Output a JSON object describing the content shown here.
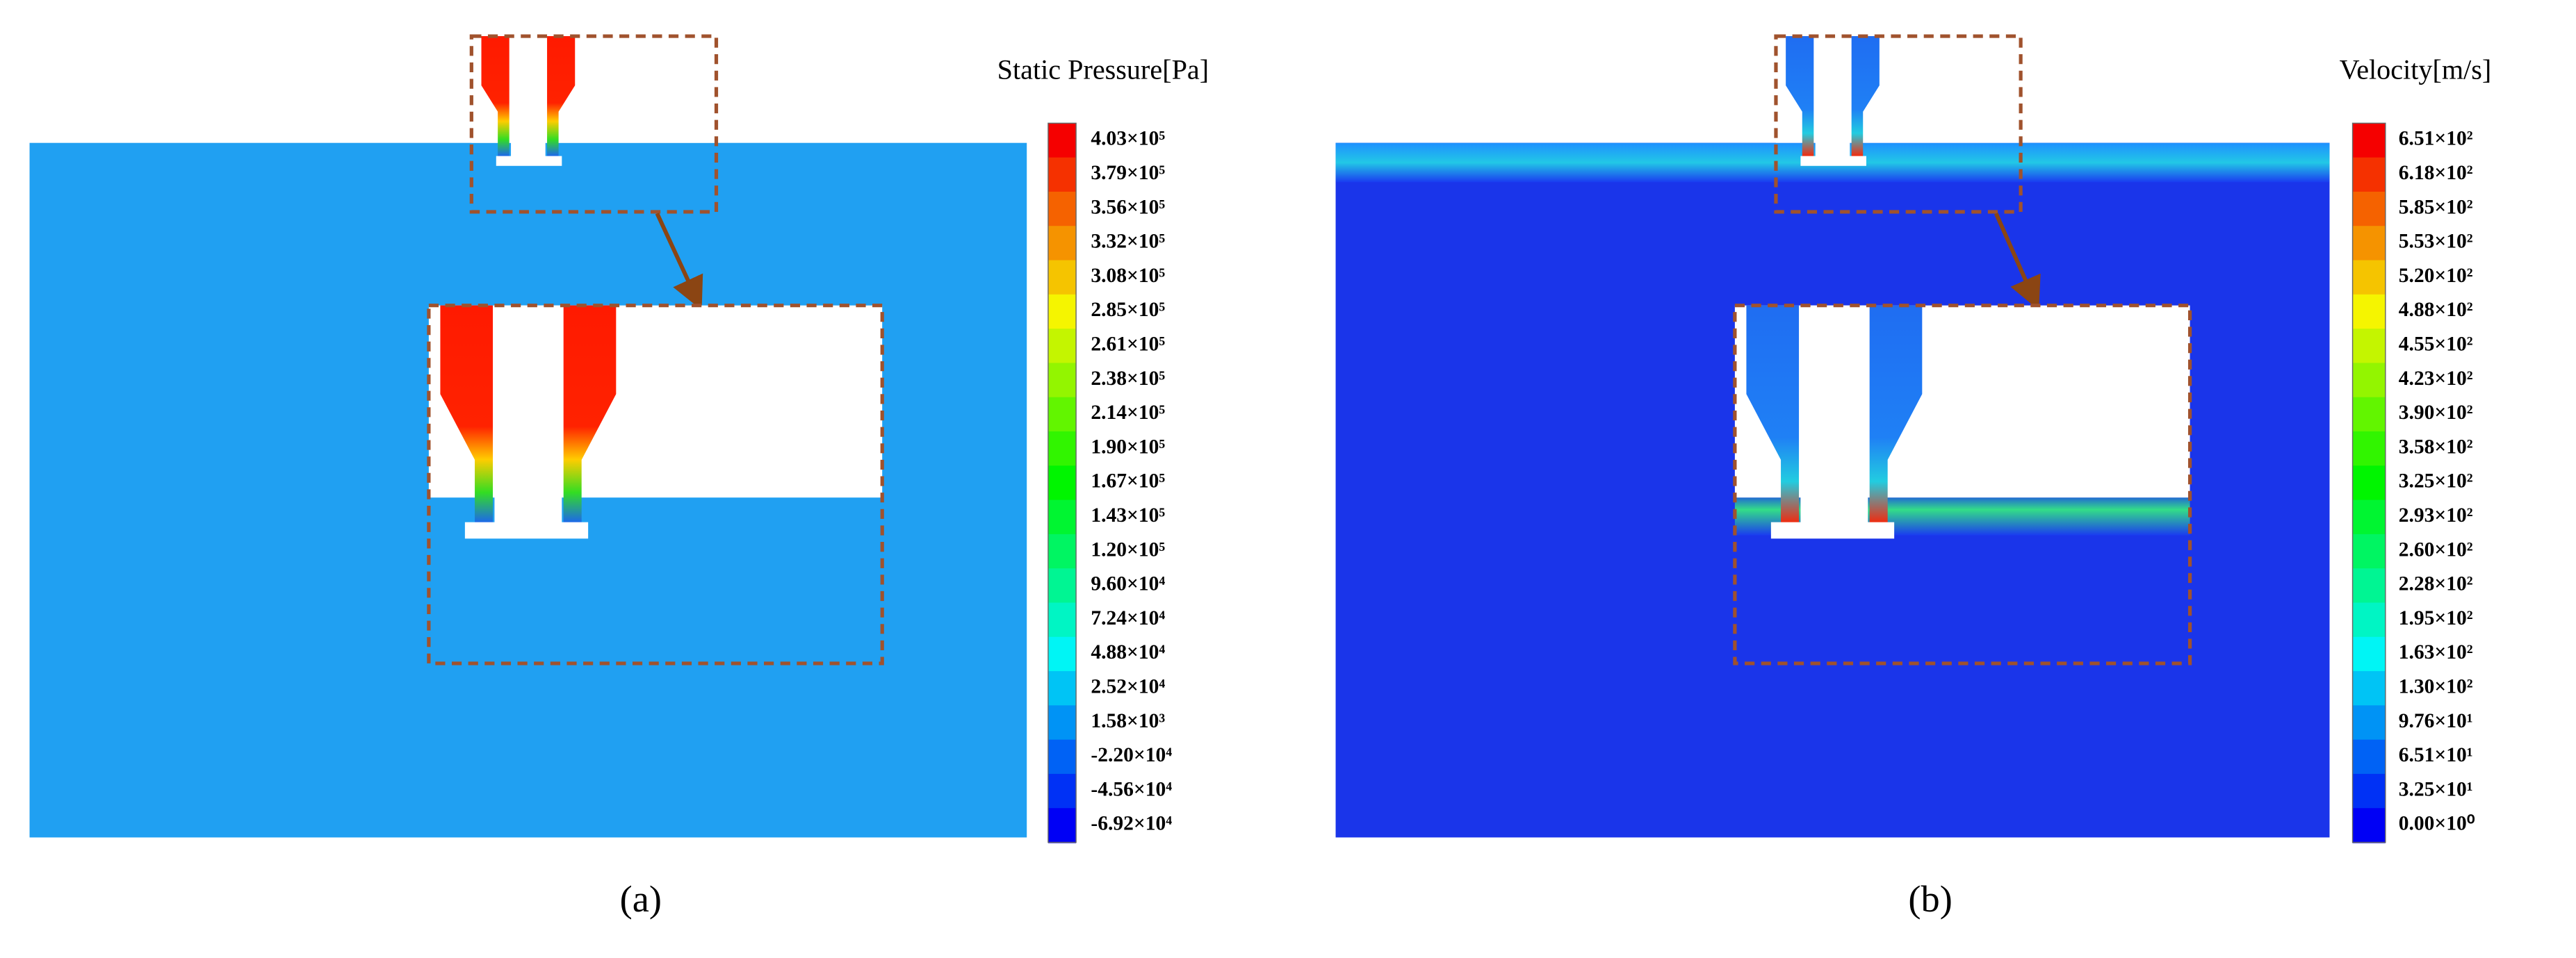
{
  "panels": [
    {
      "title": "Static Pressure[Pa]",
      "caption": "(a)",
      "legend_labels": [
        "4.03×10⁵",
        "3.79×10⁵",
        "3.56×10⁵",
        "3.32×10⁵",
        "3.08×10⁵",
        "2.85×10⁵",
        "2.61×10⁵",
        "2.38×10⁵",
        "2.14×10⁵",
        "1.90×10⁵",
        "1.67×10⁵",
        "1.43×10⁵",
        "1.20×10⁵",
        "9.60×10⁴",
        "7.24×10⁴",
        "4.88×10⁴",
        "2.52×10⁴",
        "1.58×10³",
        "-2.20×10⁴",
        "-4.56×10⁴",
        "-6.92×10⁴"
      ]
    },
    {
      "title": "Velocity[m/s]",
      "caption": "(b)",
      "legend_labels": [
        "6.51×10²",
        "6.18×10²",
        "5.85×10²",
        "5.53×10²",
        "5.20×10²",
        "4.88×10²",
        "4.55×10²",
        "4.23×10²",
        "3.90×10²",
        "3.58×10²",
        "3.25×10²",
        "2.93×10²",
        "2.60×10²",
        "2.28×10²",
        "1.95×10²",
        "1.63×10²",
        "1.30×10²",
        "9.76×10¹",
        "6.51×10¹",
        "3.25×10¹",
        "0.00×10⁰"
      ]
    }
  ]
}
